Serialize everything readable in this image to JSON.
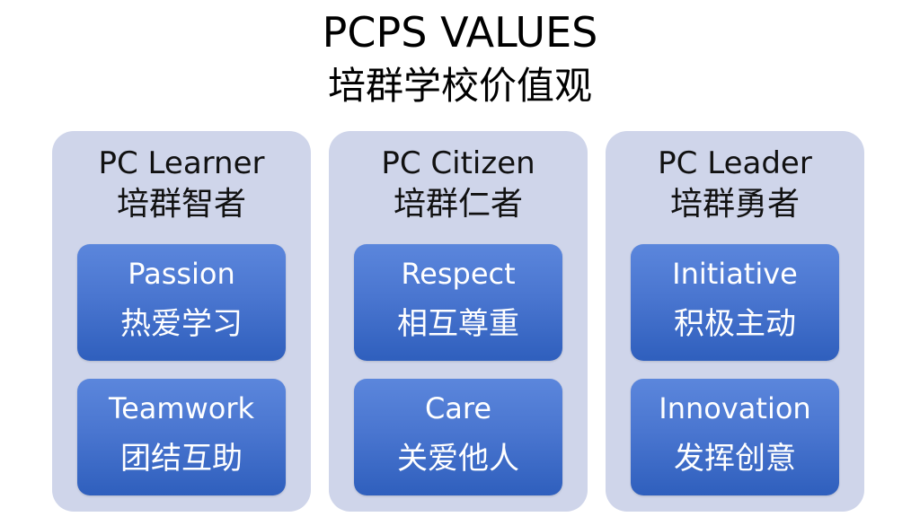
{
  "title": {
    "en": "PCPS VALUES",
    "zh": "培群学校价值观"
  },
  "columns": [
    {
      "heading_en": "PC Learner",
      "heading_zh": "培群智者",
      "values": [
        {
          "en": "Passion",
          "zh": "热爱学习"
        },
        {
          "en": "Teamwork",
          "zh": "团结互助"
        }
      ]
    },
    {
      "heading_en": "PC Citizen",
      "heading_zh": "培群仁者",
      "values": [
        {
          "en": "Respect",
          "zh": "相互尊重"
        },
        {
          "en": "Care",
          "zh": "关爱他人"
        }
      ]
    },
    {
      "heading_en": "PC Leader",
      "heading_zh": "培群勇者",
      "values": [
        {
          "en": "Initiative",
          "zh": "积极主动"
        },
        {
          "en": "Innovation",
          "zh": "发挥创意"
        }
      ]
    }
  ],
  "colors": {
    "column_bg": "#cfd5ea",
    "box_top": "#5b86dc",
    "box_bottom": "#2f5fbd",
    "box_text": "#ffffff"
  }
}
